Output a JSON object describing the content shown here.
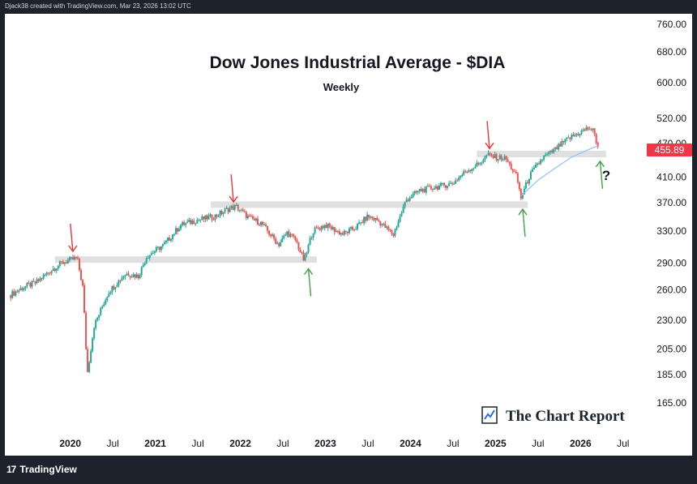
{
  "header": {
    "text": "Djack38 created with TradingView.com, Mar 23, 2026 13:02 UTC"
  },
  "footer": {
    "brand": "TradingView",
    "brand_mark": "17"
  },
  "watermark": {
    "text": "The Chart Report"
  },
  "colors": {
    "up": "#26a69a",
    "down": "#ef5350",
    "ma": "#90bff9",
    "zone": "#e0e0e0",
    "arrow_down": "#e53935",
    "arrow_up": "#43a047",
    "price_tag": "#f23645"
  },
  "chart_data": {
    "type": "candlestick",
    "title": "Dow Jones Industrial Average - $DIA",
    "subtitle": "Weekly",
    "timeframe": "Weekly",
    "y_scale": "log",
    "ylim": [
      148,
      790
    ],
    "y_ticks": [
      760,
      680,
      600,
      520,
      470,
      410,
      370,
      330,
      290,
      260,
      230,
      205,
      185,
      165
    ],
    "y_tick_labels": [
      "760.00",
      "680.00",
      "600.00",
      "520.00",
      "470.00",
      "410.00",
      "370.00",
      "330.00",
      "290.00",
      "260.00",
      "230.00",
      "205.00",
      "185.00",
      "165.00"
    ],
    "x_ticks": [
      {
        "label": "2020",
        "t": 2020.0,
        "year": true
      },
      {
        "label": "Jul",
        "t": 2020.5,
        "year": false
      },
      {
        "label": "2021",
        "t": 2021.0,
        "year": true
      },
      {
        "label": "Jul",
        "t": 2021.5,
        "year": false
      },
      {
        "label": "2022",
        "t": 2022.0,
        "year": true
      },
      {
        "label": "Jul",
        "t": 2022.5,
        "year": false
      },
      {
        "label": "2023",
        "t": 2023.0,
        "year": true
      },
      {
        "label": "Jul",
        "t": 2023.5,
        "year": false
      },
      {
        "label": "2024",
        "t": 2024.0,
        "year": true
      },
      {
        "label": "Jul",
        "t": 2024.5,
        "year": false
      },
      {
        "label": "2025",
        "t": 2025.0,
        "year": true
      },
      {
        "label": "Jul",
        "t": 2025.5,
        "year": false
      },
      {
        "label": "2026",
        "t": 2026.0,
        "year": true
      },
      {
        "label": "Jul",
        "t": 2026.5,
        "year": false
      }
    ],
    "xlim": [
      2019.25,
      2026.75
    ],
    "last_price": 455.89,
    "last_price_label": "455.89",
    "price_path": [
      [
        2019.3,
        255
      ],
      [
        2019.45,
        263
      ],
      [
        2019.6,
        268
      ],
      [
        2019.75,
        280
      ],
      [
        2019.9,
        290
      ],
      [
        2020.08,
        296
      ],
      [
        2020.15,
        262
      ],
      [
        2020.2,
        185
      ],
      [
        2020.28,
        225
      ],
      [
        2020.45,
        258
      ],
      [
        2020.65,
        278
      ],
      [
        2020.8,
        275
      ],
      [
        2020.9,
        298
      ],
      [
        2021.1,
        312
      ],
      [
        2021.3,
        338
      ],
      [
        2021.5,
        345
      ],
      [
        2021.7,
        350
      ],
      [
        2021.85,
        360
      ],
      [
        2021.95,
        364
      ],
      [
        2022.1,
        348
      ],
      [
        2022.25,
        340
      ],
      [
        2022.45,
        312
      ],
      [
        2022.55,
        328
      ],
      [
        2022.65,
        318
      ],
      [
        2022.75,
        292
      ],
      [
        2022.85,
        330
      ],
      [
        2023.0,
        338
      ],
      [
        2023.2,
        326
      ],
      [
        2023.35,
        334
      ],
      [
        2023.5,
        350
      ],
      [
        2023.62,
        344
      ],
      [
        2023.8,
        325
      ],
      [
        2023.95,
        374
      ],
      [
        2024.1,
        388
      ],
      [
        2024.3,
        394
      ],
      [
        2024.5,
        400
      ],
      [
        2024.65,
        420
      ],
      [
        2024.8,
        432
      ],
      [
        2024.9,
        448
      ],
      [
        2025.0,
        444
      ],
      [
        2025.12,
        442
      ],
      [
        2025.25,
        410
      ],
      [
        2025.3,
        377
      ],
      [
        2025.4,
        412
      ],
      [
        2025.55,
        442
      ],
      [
        2025.7,
        458
      ],
      [
        2025.85,
        478
      ],
      [
        2026.0,
        492
      ],
      [
        2026.1,
        500
      ],
      [
        2026.15,
        494
      ],
      [
        2026.22,
        456
      ]
    ],
    "moving_average": [
      [
        2025.3,
        380
      ],
      [
        2025.5,
        405
      ],
      [
        2025.7,
        425
      ],
      [
        2025.9,
        445
      ],
      [
        2026.05,
        455
      ],
      [
        2026.15,
        462
      ],
      [
        2026.22,
        465
      ]
    ],
    "zones": [
      {
        "t0": 2019.82,
        "t1": 2022.9,
        "price": 294
      },
      {
        "t0": 2021.65,
        "t1": 2025.38,
        "price": 367
      },
      {
        "t0": 2024.78,
        "t1": 2026.3,
        "price": 450
      }
    ],
    "arrows": [
      {
        "dir": "down",
        "t": 2020.03,
        "price": 300
      },
      {
        "dir": "down",
        "t": 2021.92,
        "price": 366
      },
      {
        "dir": "up",
        "t": 2022.8,
        "price": 287
      },
      {
        "dir": "down",
        "t": 2024.93,
        "price": 454
      },
      {
        "dir": "up",
        "t": 2025.32,
        "price": 365
      },
      {
        "dir": "up",
        "t": 2026.23,
        "price": 443
      }
    ],
    "annotation": "?"
  }
}
